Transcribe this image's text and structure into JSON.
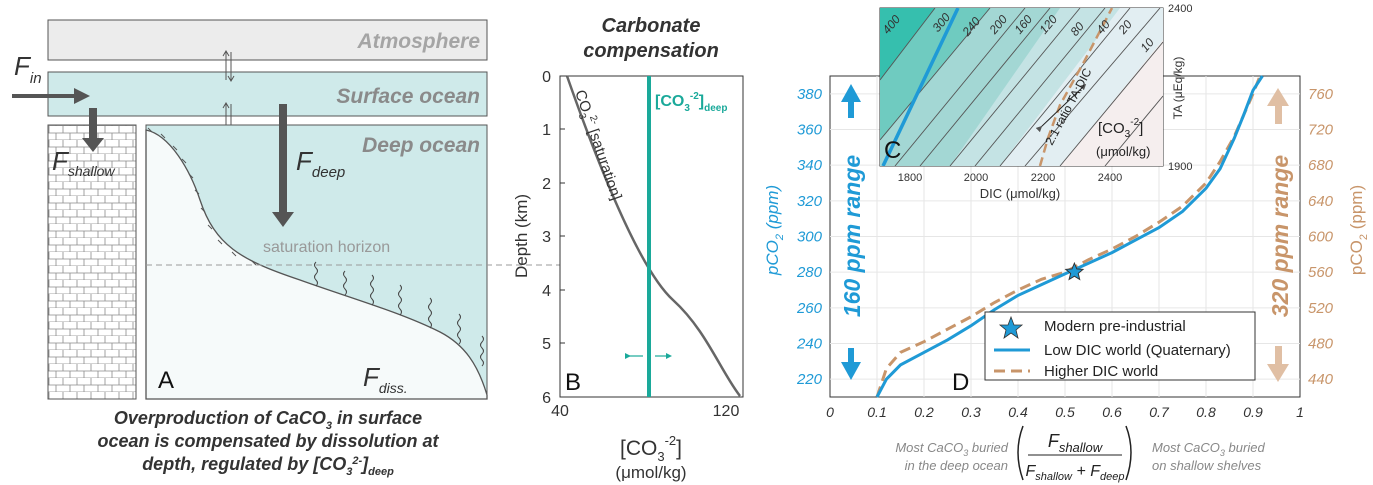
{
  "colors": {
    "teal_light": "#cfeaea",
    "teal_line": "#1aa99a",
    "blue": "#1f9ad6",
    "tan": "#c8956a",
    "gray_dark": "#555555",
    "gray_light": "#9a9a9a",
    "box_gray": "#ececec",
    "inset_teal": "#2fbfae"
  },
  "panel_a": {
    "atmosphere": "Atmosphere",
    "surface_ocean": "Surface ocean",
    "deep_ocean": "Deep ocean",
    "f_in_main": "F",
    "f_in_sub": "in",
    "f_shallow_main": "F",
    "f_shallow_sub": "shallow",
    "f_deep_main": "F",
    "f_deep_sub": "deep",
    "f_diss_main": "F",
    "f_diss_sub": "diss.",
    "saturation_horizon": "saturation horizon",
    "letter": "A",
    "caption_line1_a": "Overproduction of CaCO",
    "caption_line1_sub": "3",
    "caption_line1_b": " in surface",
    "caption_line2": "ocean is compensated by dissolution at",
    "caption_line3_a": "depth, regulated by [CO",
    "caption_line3_sub": "3",
    "caption_line3_sup": "2-",
    "caption_line3_b": "]",
    "caption_line3_sub2": "deep"
  },
  "panel_b": {
    "title_line1": "Carbonate",
    "title_line2": "compensation",
    "ylabel": "Depth (km)",
    "yticks": [
      "0",
      "1",
      "2",
      "3",
      "4",
      "5",
      "6"
    ],
    "xticks": [
      "40",
      "120"
    ],
    "xlabel_main": "[CO",
    "xlabel_sub": "3",
    "xlabel_sup": "-2",
    "xlabel_end": "]",
    "xlabel_units": "(μmol/kg)",
    "curve_label_a": "CO",
    "curve_label_sub": "3",
    "curve_label_sup": "2-",
    "curve_label_b": " [saturation]",
    "deep_label_a": "[CO",
    "deep_label_sub": "3",
    "deep_label_sup": "-2",
    "deep_label_b": "]",
    "deep_label_sub2": "deep",
    "letter": "B"
  },
  "panel_d": {
    "letter": "D",
    "left_ticks": [
      "220",
      "240",
      "260",
      "280",
      "300",
      "320",
      "340",
      "360",
      "380"
    ],
    "right_ticks": [
      "440",
      "480",
      "520",
      "560",
      "600",
      "640",
      "680",
      "720",
      "760"
    ],
    "x_ticks": [
      "0",
      "0.1",
      "0.2",
      "0.3",
      "0.4",
      "0.5",
      "0.6",
      "0.7",
      "0.8",
      "0.9",
      "1"
    ],
    "left_label_main": "pCO",
    "left_label_sub": "2",
    "left_label_units": " (ppm)",
    "right_label_main": "pCO",
    "right_label_sub": "2",
    "right_label_units": " (ppm)",
    "range_left": "160 ppm range",
    "range_right": "320 ppm range",
    "legend": [
      "Modern pre-industrial",
      "Low DIC world (Quaternary)",
      "Higher DIC world"
    ],
    "x_left_note_1a": "Most CaCO",
    "x_left_note_1sub": "3",
    "x_left_note_1b": " buried",
    "x_left_note_2": "in the deep ocean",
    "x_right_note_1a": "Most CaCO",
    "x_right_note_1sub": "3",
    "x_right_note_1b": " buried",
    "x_right_note_2": "on shallow shelves",
    "frac_num_main": "F",
    "frac_num_sub": "shallow",
    "frac_den_1": "F",
    "frac_den_1sub": "shallow",
    "frac_plus": " + ",
    "frac_den_2": "F",
    "frac_den_2sub": "deep"
  },
  "panel_c": {
    "letter": "C",
    "contours": [
      "400",
      "300",
      "240",
      "200",
      "160",
      "120",
      "80",
      "40",
      "20",
      "10"
    ],
    "x_ticks": [
      "1800",
      "2000",
      "2200",
      "2400"
    ],
    "xlabel": "DIC (μmol/kg)",
    "right_top": "2400",
    "right_bottom": "1900",
    "right_label": "TA (μEq/kg)",
    "ratio_label": "2:1 ratio TA:DIC",
    "co3_label_a": "[CO",
    "co3_label_sub": "3",
    "co3_label_sup": "-2",
    "co3_label_b": "]",
    "co3_units": "(μmol/kg)"
  },
  "chart_data": {
    "type": "line",
    "xlabel": "F_shallow / (F_shallow + F_deep)",
    "xlim": [
      0,
      1
    ],
    "left_ylim": [
      210,
      390
    ],
    "right_ylim": [
      420,
      780
    ],
    "series": [
      {
        "name": "Low DIC world (Quaternary)",
        "axis": "left",
        "x": [
          0.1,
          0.12,
          0.15,
          0.2,
          0.25,
          0.3,
          0.35,
          0.4,
          0.45,
          0.5,
          0.55,
          0.6,
          0.65,
          0.7,
          0.75,
          0.8,
          0.83,
          0.86,
          0.88,
          0.9,
          0.92
        ],
        "y": [
          210,
          220,
          228,
          235,
          242,
          250,
          259,
          267,
          273,
          279,
          285,
          291,
          298,
          305,
          314,
          327,
          338,
          355,
          368,
          382,
          390
        ]
      },
      {
        "name": "Higher DIC world",
        "axis": "right",
        "x": [
          0.1,
          0.12,
          0.15,
          0.2,
          0.25,
          0.3,
          0.35,
          0.4,
          0.45,
          0.5,
          0.55,
          0.6,
          0.65,
          0.7,
          0.75,
          0.8,
          0.83,
          0.86,
          0.88,
          0.9,
          0.915
        ],
        "y": [
          420,
          452,
          470,
          482,
          496,
          510,
          526,
          540,
          552,
          560,
          574,
          586,
          600,
          616,
          634,
          660,
          684,
          712,
          736,
          760,
          780
        ]
      },
      {
        "name": "Modern pre-industrial",
        "axis": "left",
        "x": [
          0.52
        ],
        "y": [
          280
        ]
      }
    ]
  }
}
